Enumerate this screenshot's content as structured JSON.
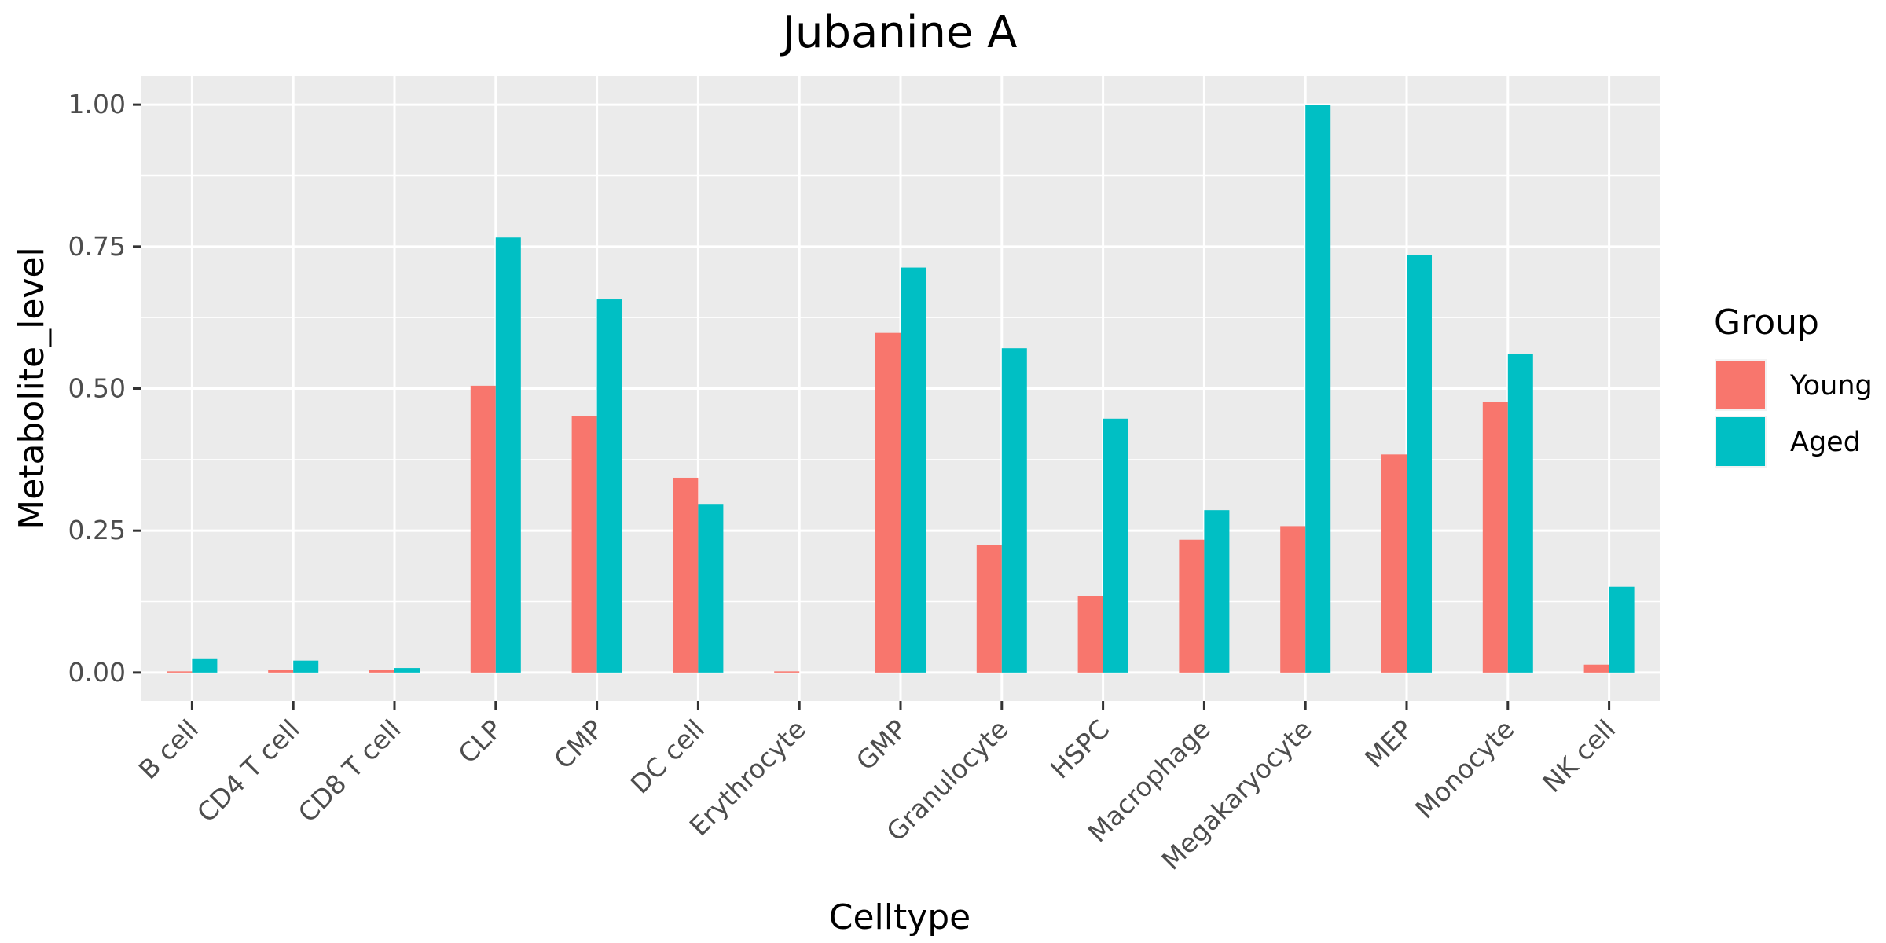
{
  "chart_data": {
    "type": "bar",
    "title": "Jubanine A",
    "xlabel": "Celltype",
    "ylabel": "Metabolite_level",
    "categories": [
      "B cell",
      "CD4 T cell",
      "CD8 T cell",
      "CLP",
      "CMP",
      "DC cell",
      "Erythrocyte",
      "GMP",
      "Granulocyte",
      "HSPC",
      "Macrophage",
      "Megakaryocyte",
      "MEP",
      "Monocyte",
      "NK cell"
    ],
    "series": [
      {
        "name": "Young",
        "color": "#F8766D",
        "values": [
          0.002,
          0.005,
          0.004,
          0.505,
          0.452,
          0.343,
          0.001,
          0.598,
          0.224,
          0.135,
          0.234,
          0.258,
          0.384,
          0.477,
          0.014
        ]
      },
      {
        "name": "Aged",
        "color": "#00BFC4",
        "values": [
          0.025,
          0.021,
          0.008,
          0.766,
          0.657,
          0.297,
          0.0,
          0.713,
          0.571,
          0.447,
          0.286,
          1.0,
          0.735,
          0.561,
          0.151
        ]
      }
    ],
    "ylim": [
      -0.05,
      1.05
    ],
    "yticks": [
      0.0,
      0.25,
      0.5,
      0.75,
      1.0
    ],
    "ytick_labels": [
      "0.00",
      "0.25",
      "0.50",
      "0.75",
      "1.00"
    ],
    "grid": true,
    "legend": {
      "title": "Group",
      "placement": "right"
    }
  }
}
